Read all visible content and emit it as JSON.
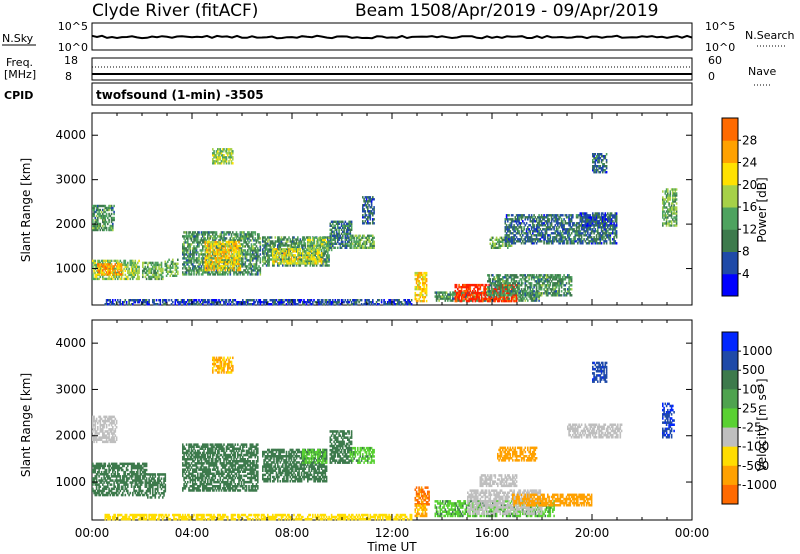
{
  "header": {
    "radar_title": "Clyde River (fitACF)",
    "beam": "Beam 15",
    "date_range": "08/Apr/2019 - 09/Apr/2019"
  },
  "top_panels": {
    "noise": {
      "left_label": "N.Sky",
      "left_ticks": [
        "10^5",
        "10^0"
      ],
      "right_ticks": [
        "10^5",
        "10^0"
      ],
      "right_label": "N.Search"
    },
    "freq": {
      "left_label_1": "Freq.",
      "left_label_2": "[MHz]",
      "left_ticks": [
        "18",
        "8"
      ],
      "right_ticks": [
        "60",
        "0"
      ],
      "right_label": "Nave"
    },
    "cpid": {
      "label": "CPID",
      "program": "twofsound (1-min) -3505"
    }
  },
  "x_axis": {
    "label": "Time UT",
    "tick_labels": [
      "00:00",
      "04:00",
      "08:00",
      "12:00",
      "16:00",
      "20:00",
      "00:00"
    ]
  },
  "colors": {
    "power": [
      "#0000ff",
      "#1f4aa8",
      "#3d7a4c",
      "#4ea35f",
      "#a6d148",
      "#ffe100",
      "#ffa100",
      "#ff6a00",
      "#ff1e00"
    ],
    "velocity": [
      "#0026ff",
      "#1f4aa8",
      "#3d7a4c",
      "#4fa34f",
      "#59d132",
      "#bfbfbf",
      "#ffdd00",
      "#ffa100",
      "#ff6a00",
      "#ff1e00"
    ]
  },
  "chart_data": [
    {
      "type": "heatmap",
      "panel": "power",
      "ylabel": "Slant Range [km]",
      "xlabel": "",
      "x_unit_hours": [
        0,
        24
      ],
      "ylim": [
        180,
        4500
      ],
      "y_ticks": [
        "1000",
        "2000",
        "3000",
        "4000"
      ],
      "colorbar_label": "Power [dB]",
      "colorbar_ticks": [
        "4",
        "8",
        "12",
        "16",
        "20",
        "24",
        "28"
      ],
      "clim": [
        0,
        30
      ],
      "patches": [
        {
          "t": [
            0.0,
            0.9
          ],
          "r": [
            1850,
            2400
          ],
          "v": 10
        },
        {
          "t": [
            0.0,
            1.9
          ],
          "r": [
            750,
            1200
          ],
          "v": 14
        },
        {
          "t": [
            0.2,
            1.2
          ],
          "r": [
            850,
            1100
          ],
          "v": 22
        },
        {
          "t": [
            2.0,
            2.8
          ],
          "r": [
            750,
            1150
          ],
          "v": 12
        },
        {
          "t": [
            2.9,
            3.4
          ],
          "r": [
            820,
            1200
          ],
          "v": 12
        },
        {
          "t": [
            3.6,
            6.7
          ],
          "r": [
            850,
            1800
          ],
          "v": 10
        },
        {
          "t": [
            4.5,
            5.9
          ],
          "r": [
            950,
            1600
          ],
          "v": 19
        },
        {
          "t": [
            4.8,
            5.6
          ],
          "r": [
            3350,
            3700
          ],
          "v": 14
        },
        {
          "t": [
            6.8,
            9.5
          ],
          "r": [
            1050,
            1700
          ],
          "v": 10
        },
        {
          "t": [
            7.2,
            9.2
          ],
          "r": [
            1100,
            1450
          ],
          "v": 17
        },
        {
          "t": [
            8.6,
            9.6
          ],
          "r": [
            1400,
            1700
          ],
          "v": 14
        },
        {
          "t": [
            9.5,
            10.4
          ],
          "r": [
            1450,
            2050
          ],
          "v": 8
        },
        {
          "t": [
            10.3,
            11.3
          ],
          "r": [
            1450,
            1750
          ],
          "v": 12
        },
        {
          "t": [
            10.8,
            11.3
          ],
          "r": [
            2000,
            2600
          ],
          "v": 6
        },
        {
          "t": [
            12.9,
            13.4
          ],
          "r": [
            250,
            900
          ],
          "v": 19
        },
        {
          "t": [
            13.7,
            17.9
          ],
          "r": [
            260,
            450
          ],
          "v": 10
        },
        {
          "t": [
            14.5,
            17.0
          ],
          "r": [
            250,
            650
          ],
          "v": 29
        },
        {
          "t": [
            15.8,
            19.2
          ],
          "r": [
            380,
            850
          ],
          "v": 10
        },
        {
          "t": [
            15.9,
            16.8
          ],
          "r": [
            1450,
            1700
          ],
          "v": 12
        },
        {
          "t": [
            16.5,
            21.0
          ],
          "r": [
            1550,
            2200
          ],
          "v": 7
        },
        {
          "t": [
            19.5,
            21.0
          ],
          "r": [
            1950,
            2250
          ],
          "v": 6
        },
        {
          "t": [
            20.0,
            20.6
          ],
          "r": [
            3150,
            3600
          ],
          "v": 7
        },
        {
          "t": [
            22.8,
            23.4
          ],
          "r": [
            1950,
            2800
          ],
          "v": 12
        },
        {
          "t": [
            0.5,
            12.8
          ],
          "r": [
            180,
            280
          ],
          "v": 5
        }
      ]
    },
    {
      "type": "heatmap",
      "panel": "velocity",
      "ylabel": "Slant Range [km]",
      "xlabel": "Time UT",
      "x_unit_hours": [
        0,
        24
      ],
      "ylim": [
        180,
        4500
      ],
      "y_ticks": [
        "1000",
        "2000",
        "3000",
        "4000"
      ],
      "colorbar_label": "Velocity [m s⁻¹]",
      "colorbar_ticks": [
        "1000",
        "500",
        "100",
        "25",
        "-25",
        "-100",
        "-500",
        "-1000"
      ],
      "patches": [
        {
          "t": [
            0.0,
            1.0
          ],
          "r": [
            1850,
            2400
          ],
          "v": -10
        },
        {
          "t": [
            0.0,
            2.2
          ],
          "r": [
            700,
            1400
          ],
          "v": 300
        },
        {
          "t": [
            2.2,
            2.9
          ],
          "r": [
            650,
            1150
          ],
          "v": 300
        },
        {
          "t": [
            3.6,
            6.6
          ],
          "r": [
            800,
            1800
          ],
          "v": 300
        },
        {
          "t": [
            4.8,
            5.6
          ],
          "r": [
            3350,
            3700
          ],
          "v": -120
        },
        {
          "t": [
            6.8,
            9.4
          ],
          "r": [
            1000,
            1700
          ],
          "v": 250
        },
        {
          "t": [
            8.4,
            9.4
          ],
          "r": [
            1400,
            1700
          ],
          "v": 80
        },
        {
          "t": [
            9.5,
            10.4
          ],
          "r": [
            1400,
            2100
          ],
          "v": 300
        },
        {
          "t": [
            10.3,
            11.3
          ],
          "r": [
            1400,
            1750
          ],
          "v": 80
        },
        {
          "t": [
            12.9,
            13.5
          ],
          "r": [
            500,
            900
          ],
          "v": -600
        },
        {
          "t": [
            12.9,
            13.4
          ],
          "r": [
            250,
            480
          ],
          "v": -120
        },
        {
          "t": [
            13.7,
            18.5
          ],
          "r": [
            250,
            600
          ],
          "v": 80
        },
        {
          "t": [
            15.0,
            18.0
          ],
          "r": [
            300,
            800
          ],
          "v": -10
        },
        {
          "t": [
            16.8,
            20.0
          ],
          "r": [
            480,
            750
          ],
          "v": -200
        },
        {
          "t": [
            16.2,
            17.8
          ],
          "r": [
            1450,
            1750
          ],
          "v": -300
        },
        {
          "t": [
            15.5,
            17.0
          ],
          "r": [
            900,
            1150
          ],
          "v": -10
        },
        {
          "t": [
            19.0,
            21.2
          ],
          "r": [
            1950,
            2250
          ],
          "v": -10
        },
        {
          "t": [
            20.0,
            20.6
          ],
          "r": [
            3150,
            3600
          ],
          "v": 800
        },
        {
          "t": [
            22.8,
            23.3
          ],
          "r": [
            1950,
            2700
          ],
          "v": 900
        },
        {
          "t": [
            0.5,
            12.8
          ],
          "r": [
            180,
            300
          ],
          "v": -60
        }
      ]
    }
  ]
}
